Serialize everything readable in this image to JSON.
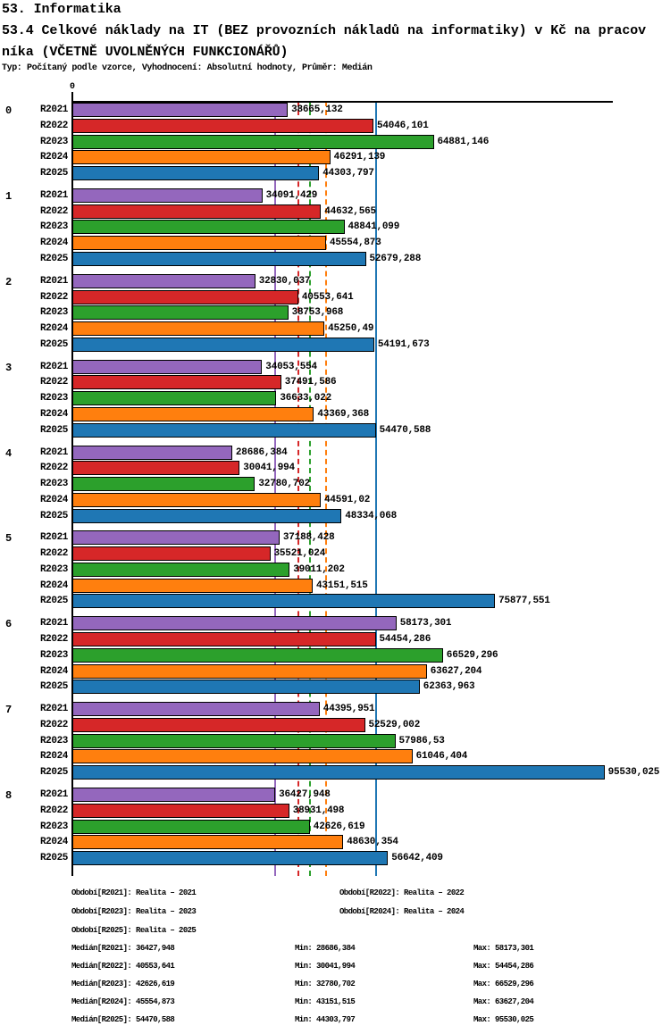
{
  "header": {
    "line1": "53. Informatika",
    "line2": "53.4 Celkové náklady na IT (BEZ provozních nákladů na informatiky) v Kč na pracov",
    "line3": "níka (VČETNĚ UVOLNĚNÝCH FUNKCIONÁŘŮ)",
    "meta": "Typ: Počítaný podle vzorce, Vyhodnocení: Absolutní hodnoty, Průměr: Medián"
  },
  "chart_data": {
    "type": "bar",
    "orientation": "horizontal",
    "title": "53.4 Celkové náklady na IT (BEZ provozních nákladů na informatiky) v Kč na pracovníka (VČETNĚ UVOLNĚNÝCH FUNKCIONÁŘŮ)",
    "axis_zero_label": "0",
    "x_axis": {
      "origin": 0,
      "tick_labels": [
        "0"
      ],
      "grid": false
    },
    "legend_position": "bottom",
    "series_meta": [
      {
        "name": "R2021",
        "color": "#9467bd",
        "median": 36427.948,
        "median_line_style": "solid"
      },
      {
        "name": "R2022",
        "color": "#d62728",
        "median": 40553.641,
        "median_line_style": "dashed"
      },
      {
        "name": "R2023",
        "color": "#2ca02c",
        "median": 42626.619,
        "median_line_style": "dashed"
      },
      {
        "name": "R2024",
        "color": "#ff7f0e",
        "median": 45554.873,
        "median_line_style": "dashed"
      },
      {
        "name": "R2025",
        "color": "#1f77b4",
        "median": 54470.588,
        "median_line_style": "solid"
      }
    ],
    "categories": [
      "0",
      "1",
      "2",
      "3",
      "4",
      "5",
      "6",
      "7",
      "8"
    ],
    "groups": [
      {
        "label": "0",
        "values": [
          38665.132,
          54046.101,
          64881.146,
          46291.139,
          44303.797
        ],
        "value_labels": [
          "38665,132",
          "54046,101",
          "64881,146",
          "46291,139",
          "44303,797"
        ]
      },
      {
        "label": "1",
        "values": [
          34091.429,
          44632.565,
          48841.099,
          45554.873,
          52679.288
        ],
        "value_labels": [
          "34091,429",
          "44632,565",
          "48841,099",
          "45554,873",
          "52679,288"
        ]
      },
      {
        "label": "2",
        "values": [
          32830.037,
          40553.641,
          38753.968,
          45250.49,
          54191.673
        ],
        "value_labels": [
          "32830,037",
          "40553,641",
          "38753,968",
          "45250,49",
          "54191,673"
        ]
      },
      {
        "label": "3",
        "values": [
          34053.554,
          37491.586,
          36633.022,
          43369.368,
          54470.588
        ],
        "value_labels": [
          "34053,554",
          "37491,586",
          "36633,022",
          "43369,368",
          "54470,588"
        ]
      },
      {
        "label": "4",
        "values": [
          28686.384,
          30041.994,
          32780.702,
          44591.02,
          48334.068
        ],
        "value_labels": [
          "28686,384",
          "30041,994",
          "32780,702",
          "44591,02",
          "48334,068"
        ]
      },
      {
        "label": "5",
        "values": [
          37188.428,
          35521.024,
          39011.202,
          43151.515,
          75877.551
        ],
        "value_labels": [
          "37188,428",
          "35521,024",
          "39011,202",
          "43151,515",
          "75877,551"
        ]
      },
      {
        "label": "6",
        "values": [
          58173.301,
          54454.286,
          66529.296,
          63627.204,
          62363.963
        ],
        "value_labels": [
          "58173,301",
          "54454,286",
          "66529,296",
          "63627,204",
          "62363,963"
        ]
      },
      {
        "label": "7",
        "values": [
          44395.951,
          52529.002,
          57986.53,
          61046.404,
          95530.025
        ],
        "value_labels": [
          "44395,951",
          "52529,002",
          "57986,53",
          "61046,404",
          "95530,025"
        ]
      },
      {
        "label": "8",
        "values": [
          36427.948,
          38931.498,
          42626.619,
          48630.354,
          56642.409
        ],
        "value_labels": [
          "36427,948",
          "38931,498",
          "42626,619",
          "48630,354",
          "56642,409"
        ]
      }
    ]
  },
  "legend": {
    "rows": [
      [
        "Období[R2021]: Realita – 2021",
        "Období[R2022]: Realita – 2022"
      ],
      [
        "Období[R2023]: Realita – 2023",
        "Období[R2024]: Realita – 2024"
      ],
      [
        "Období[R2025]: Realita – 2025"
      ]
    ]
  },
  "stats": [
    {
      "median": "Medián[R2021]: 36427,948",
      "min": "Min: 28686,384",
      "max": "Max: 58173,301"
    },
    {
      "median": "Medián[R2022]: 40553,641",
      "min": "Min: 30041,994",
      "max": "Max: 54454,286"
    },
    {
      "median": "Medián[R2023]: 42626,619",
      "min": "Min: 32780,702",
      "max": "Max: 66529,296"
    },
    {
      "median": "Medián[R2024]: 45554,873",
      "min": "Min: 43151,515",
      "max": "Max: 63627,204"
    },
    {
      "median": "Medián[R2025]: 54470,588",
      "min": "Min: 44303,797",
      "max": "Max: 95530,025"
    }
  ]
}
